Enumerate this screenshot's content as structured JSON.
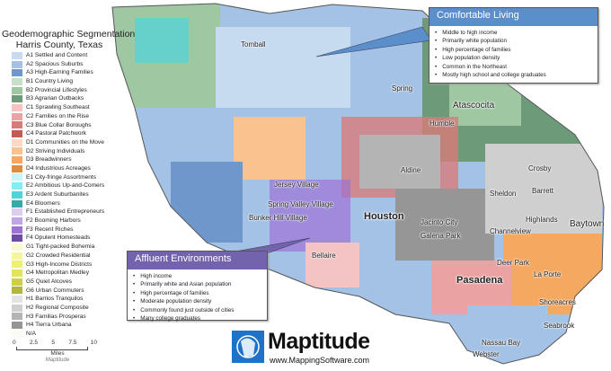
{
  "legend": {
    "title": "Geodemographic Segmentation",
    "subtitle": "Harris County, Texas",
    "items": [
      {
        "label": "A1 Settled and Content",
        "color": "#c6daf0"
      },
      {
        "label": "A2 Spacious Suburbs",
        "color": "#a4c2e6"
      },
      {
        "label": "A3 High-Earning Families",
        "color": "#6f97cc"
      },
      {
        "label": "B1 Country Living",
        "color": "#c7e1c8"
      },
      {
        "label": "B2 Provincial Lifestyles",
        "color": "#9fc8a2"
      },
      {
        "label": "B3 Agrarian Outbacks",
        "color": "#6d9b7a"
      },
      {
        "label": "C1 Sprawling Southeast",
        "color": "#f4c4c4"
      },
      {
        "label": "C2 Families on the Rise",
        "color": "#eba2a2"
      },
      {
        "label": "C3 Blue Collar Boroughs",
        "color": "#d97a7a"
      },
      {
        "label": "C4 Pastoral Patchwork",
        "color": "#c45a52"
      },
      {
        "label": "D1 Communities on the Move",
        "color": "#fcd9c0"
      },
      {
        "label": "D2 Striving Individuals",
        "color": "#f9c28f"
      },
      {
        "label": "D3 Breadwinners",
        "color": "#f5a860"
      },
      {
        "label": "D4 Industrious Acreages",
        "color": "#e08c40"
      },
      {
        "label": "E1 City-fringe Assortments",
        "color": "#c6f6f8"
      },
      {
        "label": "E2 Ambitious Up-and-Comers",
        "color": "#84ecf2"
      },
      {
        "label": "E3 Ardent Suburbanites",
        "color": "#4fd4dc"
      },
      {
        "label": "E4 Bloomers",
        "color": "#3aa8a8"
      },
      {
        "label": "F1 Established Entrepreneurs",
        "color": "#ddcdf0"
      },
      {
        "label": "F2 Booming Harbors",
        "color": "#c0a6e6"
      },
      {
        "label": "F3 Recent Riches",
        "color": "#9c72d6"
      },
      {
        "label": "F4 Opulent Homesteads",
        "color": "#6e4aa8"
      },
      {
        "label": "G1 Tight-packed Bohemia",
        "color": "#fafad0"
      },
      {
        "label": "G2 Crowded Residential",
        "color": "#f6f6a0"
      },
      {
        "label": "G3 High-Income Districts",
        "color": "#f0f070"
      },
      {
        "label": "G4 Metropolitan Medley",
        "color": "#e4e45a"
      },
      {
        "label": "G5 Quiet Alcoves",
        "color": "#cece48"
      },
      {
        "label": "G6 Urban Commuters",
        "color": "#b4b440"
      },
      {
        "label": "H1 Barrios Tranquilos",
        "color": "#e4e4e4"
      },
      {
        "label": "H2 Regional Composite",
        "color": "#cfcfcf"
      },
      {
        "label": "H3 Familias Prosperas",
        "color": "#b4b4b4"
      },
      {
        "label": "H4 Tierra Urbana",
        "color": "#969696"
      },
      {
        "label": "N/A",
        "color": "#fbfbf2"
      }
    ]
  },
  "scale": {
    "ticks": [
      "0",
      "2.5",
      "5",
      "7.5",
      "10"
    ],
    "unit": "Miles",
    "credit": "Maptitude"
  },
  "cities": [
    {
      "name": "Tomball",
      "cls": ""
    },
    {
      "name": "Spring",
      "cls": ""
    },
    {
      "name": "Humble",
      "cls": ""
    },
    {
      "name": "Atascocita",
      "cls": "mid"
    },
    {
      "name": "Aldine",
      "cls": ""
    },
    {
      "name": "Jersey Village",
      "cls": ""
    },
    {
      "name": "Crosby",
      "cls": ""
    },
    {
      "name": "Sheldon",
      "cls": ""
    },
    {
      "name": "Barrett",
      "cls": ""
    },
    {
      "name": "Highlands",
      "cls": ""
    },
    {
      "name": "Channelview",
      "cls": ""
    },
    {
      "name": "Baytown",
      "cls": "mid"
    },
    {
      "name": "Houston",
      "cls": "big"
    },
    {
      "name": "Spring Valley Village",
      "cls": ""
    },
    {
      "name": "Bunker Hill Village",
      "cls": ""
    },
    {
      "name": "Jacinto City",
      "cls": ""
    },
    {
      "name": "Galena Park",
      "cls": ""
    },
    {
      "name": "Bellaire",
      "cls": ""
    },
    {
      "name": "Deer Park",
      "cls": ""
    },
    {
      "name": "La Porte",
      "cls": ""
    },
    {
      "name": "Pasadena",
      "cls": "big"
    },
    {
      "name": "Shoreacres",
      "cls": ""
    },
    {
      "name": "Seabrook",
      "cls": ""
    },
    {
      "name": "Nassau Bay",
      "cls": ""
    },
    {
      "name": "Webster",
      "cls": ""
    }
  ],
  "comfortable": {
    "title": "Comfortable Living",
    "color": "#5a8fcc",
    "bullets": [
      "Middle to high income",
      "Primarily white population",
      "High percentage of families",
      "Low population density",
      "Common in the Northeast",
      "Mostly high school and college graduates"
    ]
  },
  "affluent": {
    "title": "Affluent Environments",
    "color": "#7363ad",
    "bullets": [
      "High income",
      "Primarily white and Asian population",
      "High percentage of families",
      "Moderate population density",
      "Commonly found just outside of cities",
      "Many college graduates"
    ]
  },
  "logo": {
    "name": "Maptitude",
    "url": "www.MappingSoftware.com",
    "icon": "globe-head-icon"
  }
}
